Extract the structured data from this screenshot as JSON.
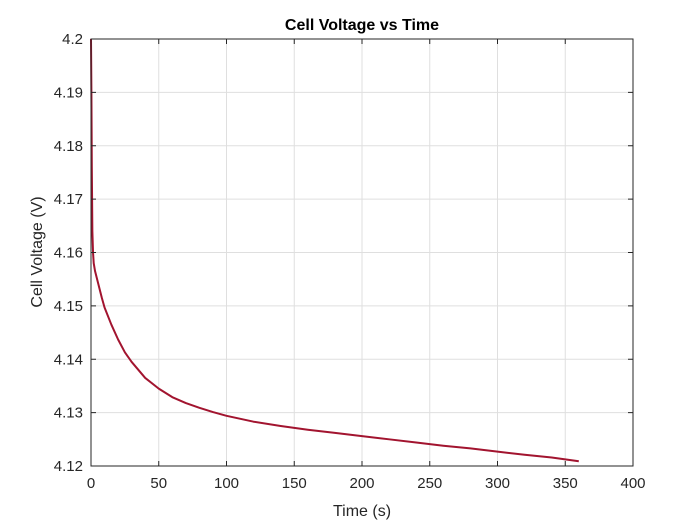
{
  "chart_data": {
    "type": "line",
    "title": "Cell Voltage vs Time",
    "xlabel": "Time (s)",
    "ylabel": "Cell Voltage (V)",
    "xlim": [
      0,
      400
    ],
    "ylim": [
      4.12,
      4.2
    ],
    "xticks": [
      0,
      50,
      100,
      150,
      200,
      250,
      300,
      350,
      400
    ],
    "yticks": [
      4.12,
      4.13,
      4.14,
      4.15,
      4.16,
      4.17,
      4.18,
      4.19,
      4.2
    ],
    "xtick_labels": [
      "0",
      "50",
      "100",
      "150",
      "200",
      "250",
      "300",
      "350",
      "400"
    ],
    "ytick_labels": [
      "4.12",
      "4.13",
      "4.14",
      "4.15",
      "4.16",
      "4.17",
      "4.18",
      "4.19",
      "4.2"
    ],
    "grid": true,
    "box": true,
    "series": [
      {
        "color": "#a2142f",
        "x": [
          0,
          0.3,
          0.6,
          1,
          1.5,
          2,
          3,
          5,
          8,
          10,
          15,
          20,
          25,
          30,
          40,
          50,
          60,
          70,
          80,
          90,
          100,
          120,
          140,
          160,
          180,
          200,
          220,
          240,
          260,
          280,
          300,
          320,
          340,
          360
        ],
        "y": [
          4.2,
          4.19,
          4.176,
          4.164,
          4.16,
          4.158,
          4.1565,
          4.1545,
          4.1515,
          4.1497,
          4.1465,
          4.1437,
          4.1413,
          4.1395,
          4.1365,
          4.1345,
          4.1329,
          4.1318,
          4.1309,
          4.1301,
          4.1294,
          4.1283,
          4.1275,
          4.1268,
          4.1262,
          4.1256,
          4.125,
          4.1244,
          4.1238,
          4.1233,
          4.1227,
          4.1221,
          4.1216,
          4.1209
        ]
      }
    ]
  }
}
